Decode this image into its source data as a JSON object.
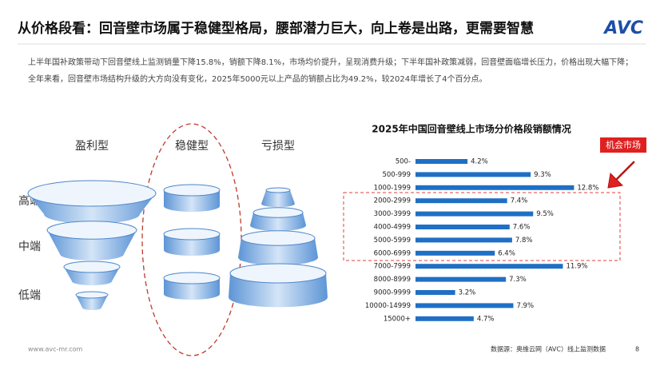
{
  "header": {
    "title": "从价格段看：回音壁市场属于稳健型格局，腰部潜力巨大，向上卷是出路，更需要智慧",
    "logo": "AVC"
  },
  "body": [
    "上半年国补政策带动下回音壁线上监测销量下降15.8%，销额下降8.1%，市场均价提升，呈现消费升级；下半年国补政策减弱，回音壁面临增长压力，价格出现大幅下降；",
    "全年来看，回音壁市场结构升级的大方向没有变化，2025年5000元以上产品的销额占比为49.2%，较2024年增长了4个百分点。"
  ],
  "diagram": {
    "columns": [
      "盈利型",
      "稳健型",
      "亏损型"
    ],
    "rows": [
      "高端",
      "中端",
      "低端"
    ]
  },
  "chart_data": {
    "type": "bar",
    "orientation": "horizontal",
    "title": "2025年中国回音壁线上市场分价格段销额情况",
    "categories": [
      "500-",
      "500-999",
      "1000-1999",
      "2000-2999",
      "3000-3999",
      "4000-4999",
      "5000-5999",
      "6000-6999",
      "7000-7999",
      "8000-8999",
      "9000-9999",
      "10000-14999",
      "15000+"
    ],
    "values": [
      4.2,
      9.3,
      12.8,
      7.4,
      9.5,
      7.6,
      7.8,
      6.4,
      11.9,
      7.3,
      3.2,
      7.9,
      4.7
    ],
    "value_labels": [
      "4.2%",
      "9.3%",
      "12.8%",
      "7.4%",
      "9.5%",
      "7.6%",
      "7.8%",
      "6.4%",
      "11.9%",
      "7.3%",
      "3.2%",
      "7.9%",
      "4.7%"
    ],
    "color": "#1f6fc5",
    "annotation": "机会市场"
  },
  "footer": {
    "url": "www.avc-mr.com",
    "source": "数据源：奥维云网（AVC）线上监测数据",
    "page": "8"
  }
}
